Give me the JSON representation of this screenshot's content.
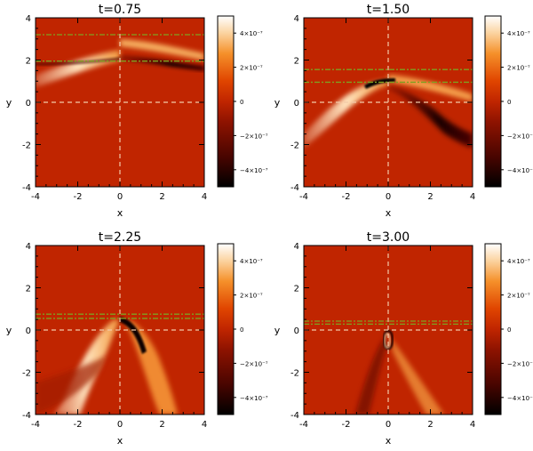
{
  "chart_data": [
    {
      "type": "heatmap",
      "title": "t=0.75",
      "xlabel": "x",
      "ylabel": "y",
      "xlim": [
        -4,
        4
      ],
      "ylim": [
        -4,
        4
      ],
      "xticks": [
        "-4",
        "-2",
        "0",
        "2",
        "4"
      ],
      "yticks": [
        "-4",
        "-2",
        "0",
        "2",
        "4"
      ],
      "reference_lines_y": [
        3.2,
        1.95
      ],
      "colorbar": {
        "ticks": [
          "4×10⁻⁷",
          "2×10⁻⁷",
          "0",
          "−2×10⁻⁷",
          "−4×10⁻⁷"
        ],
        "range": [
          -5e-07,
          5e-07
        ]
      }
    },
    {
      "type": "heatmap",
      "title": "t=1.50",
      "xlabel": "x",
      "ylabel": "y",
      "xlim": [
        -4,
        4
      ],
      "ylim": [
        -4,
        4
      ],
      "xticks": [
        "-4",
        "-2",
        "0",
        "2",
        "4"
      ],
      "yticks": [
        "-4",
        "-2",
        "0",
        "2",
        "4"
      ],
      "reference_lines_y": [
        1.55,
        0.95
      ],
      "colorbar": {
        "ticks": [
          "4×10⁻⁷",
          "2×10⁻⁷",
          "0",
          "−2×10⁻⁷",
          "−4×10⁻⁷"
        ],
        "range": [
          -5e-07,
          5e-07
        ]
      }
    },
    {
      "type": "heatmap",
      "title": "t=2.25",
      "xlabel": "x",
      "ylabel": "y",
      "xlim": [
        -4,
        4
      ],
      "ylim": [
        -4,
        4
      ],
      "xticks": [
        "-4",
        "-2",
        "0",
        "2",
        "4"
      ],
      "yticks": [
        "-4",
        "-2",
        "0",
        "2",
        "4"
      ],
      "reference_lines_y": [
        0.75,
        0.55
      ],
      "colorbar": {
        "ticks": [
          "4×10⁻⁷",
          "2×10⁻⁷",
          "0",
          "−2×10⁻⁷",
          "−4×10⁻⁷"
        ],
        "range": [
          -5e-07,
          5e-07
        ]
      }
    },
    {
      "type": "heatmap",
      "title": "t=3.00",
      "xlabel": "x",
      "ylabel": "y",
      "xlim": [
        -4,
        4
      ],
      "ylim": [
        -4,
        4
      ],
      "xticks": [
        "-4",
        "-2",
        "0",
        "2",
        "4"
      ],
      "yticks": [
        "-4",
        "-2",
        "0",
        "2",
        "4"
      ],
      "reference_lines_y": [
        0.42,
        0.28
      ],
      "colorbar": {
        "ticks": [
          "4×10⁻⁷",
          "2×10⁻⁷",
          "0",
          "−2×10⁻⁷",
          "−4×10⁻⁷"
        ],
        "range": [
          -5e-07,
          5e-07
        ]
      }
    }
  ]
}
